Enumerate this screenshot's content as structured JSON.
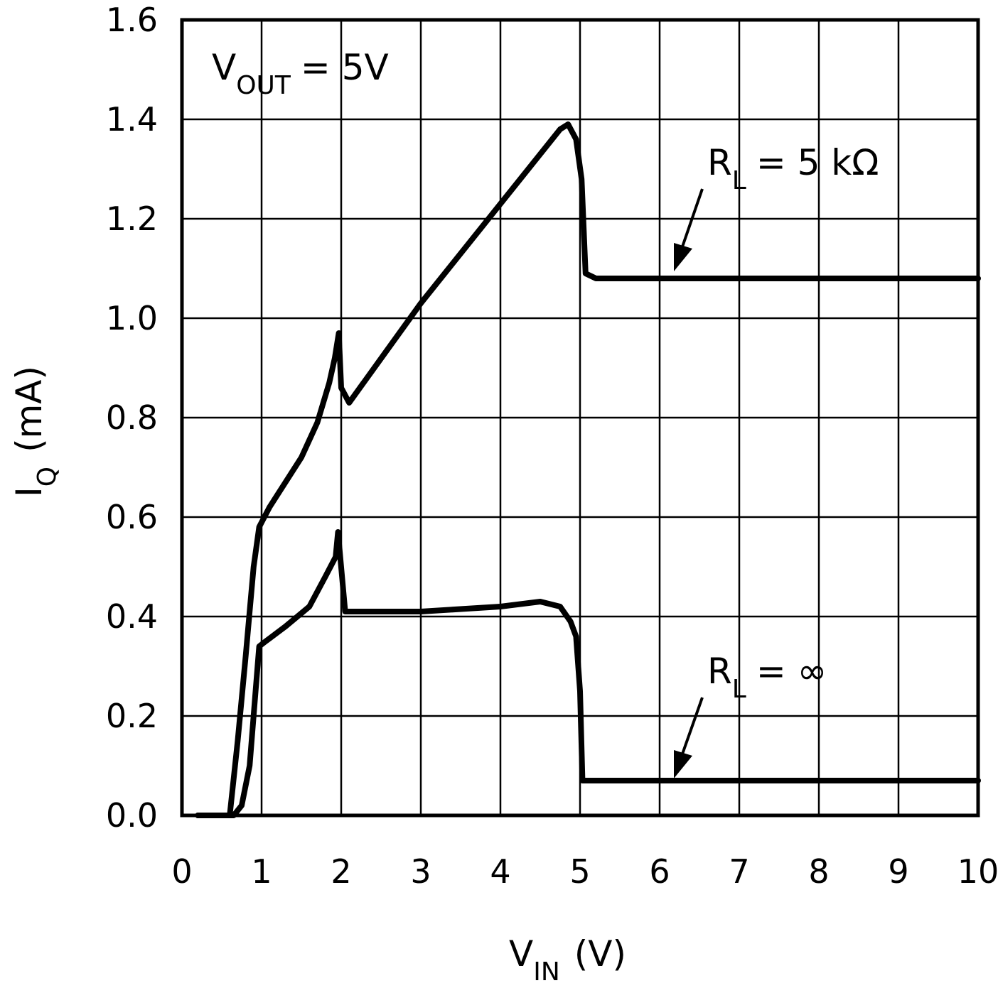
{
  "chart_data": {
    "type": "line",
    "xlabel": {
      "main": "V",
      "sub": "IN",
      "unit": "(V)"
    },
    "ylabel": {
      "main": "I",
      "sub": "Q",
      "unit": "(mA)"
    },
    "xlim": [
      0,
      10
    ],
    "ylim": [
      0,
      1.6
    ],
    "xticks": [
      "0",
      "1",
      "2",
      "3",
      "4",
      "5",
      "6",
      "7",
      "8",
      "9",
      "10"
    ],
    "yticks": [
      "0.0",
      "0.2",
      "0.4",
      "0.6",
      "0.8",
      "1.0",
      "1.2",
      "1.4",
      "1.6"
    ],
    "grid": true,
    "condition": {
      "main": "V",
      "sub": "OUT",
      "rest": "= 5V"
    },
    "annotations": [
      {
        "main": "R",
        "sub": "L",
        "rest": "= 5 kΩ"
      },
      {
        "main": "R",
        "sub": "L",
        "rest": "= ∞"
      }
    ],
    "series": [
      {
        "x": [
          0.2,
          0.6,
          0.7,
          0.8,
          0.9,
          0.97,
          1.1,
          1.3,
          1.5,
          1.7,
          1.85,
          1.92,
          1.97,
          2.0,
          2.1,
          3.0,
          4.0,
          4.75,
          4.85,
          4.95,
          5.02,
          5.07,
          5.2,
          6.0,
          10.0
        ],
        "y": [
          0.0,
          0.0,
          0.15,
          0.32,
          0.5,
          0.58,
          0.62,
          0.67,
          0.72,
          0.79,
          0.87,
          0.92,
          0.97,
          0.86,
          0.83,
          1.03,
          1.23,
          1.38,
          1.39,
          1.36,
          1.28,
          1.09,
          1.08,
          1.08,
          1.08
        ]
      },
      {
        "x": [
          0.2,
          0.65,
          0.75,
          0.85,
          0.92,
          0.97,
          1.05,
          1.3,
          1.6,
          1.8,
          1.93,
          1.96,
          2.05,
          3.0,
          4.0,
          4.5,
          4.75,
          4.88,
          4.95,
          5.0,
          5.03,
          5.1,
          6.0,
          10.0
        ],
        "y": [
          0.0,
          0.0,
          0.02,
          0.1,
          0.24,
          0.34,
          0.35,
          0.38,
          0.42,
          0.48,
          0.52,
          0.57,
          0.41,
          0.41,
          0.42,
          0.43,
          0.42,
          0.39,
          0.36,
          0.25,
          0.07,
          0.07,
          0.07,
          0.07
        ]
      }
    ]
  }
}
